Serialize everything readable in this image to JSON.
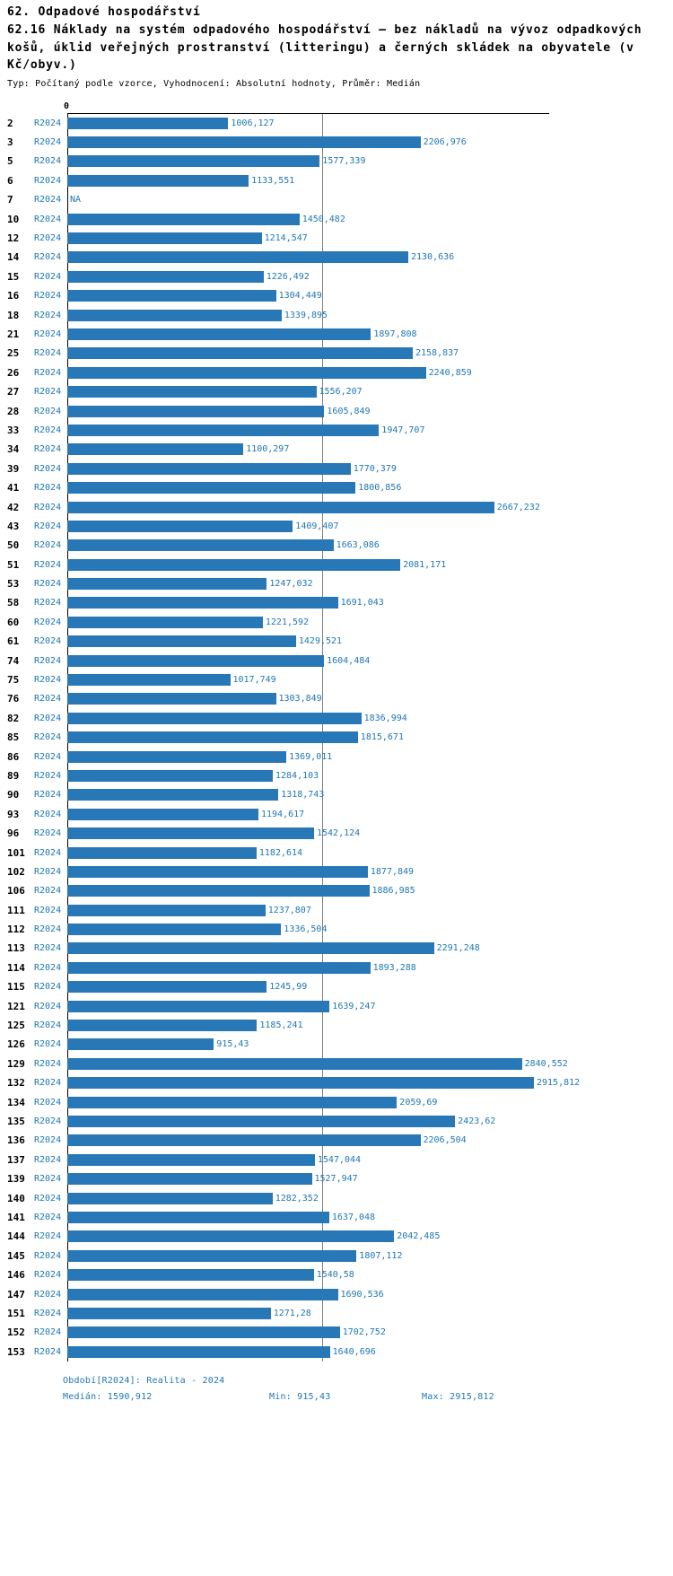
{
  "header": {
    "title": "62. Odpadové hospodářství",
    "subtitle": "62.16 Náklady na systém odpadového hospodářství – bez nákladů na vývoz odpadkových košů, úklid veřejných prostranství (litteringu) a černých skládek na obyvatele (v Kč/obyv.)",
    "meta": "Typ: Počítaný podle vzorce, Vyhodnocení: Absolutní hodnoty, Průměr: Medián"
  },
  "colors": {
    "bar": "#2878b8",
    "accent": "#1f77b4",
    "axis": "#000000",
    "median_line": "#7f7f7f"
  },
  "chart_data": {
    "type": "bar",
    "orientation": "horizontal",
    "series_label": "R2024",
    "title": "62.16 Náklady na systém odpadového hospodářství (v Kč/obyv.)",
    "axis": {
      "origin_label": "0",
      "xmin": 0,
      "xmax": 3000,
      "median_value": 1590.912
    },
    "rows": [
      {
        "id": "2",
        "value": 1006.127,
        "label": "1006,127"
      },
      {
        "id": "3",
        "value": 2206.976,
        "label": "2206,976"
      },
      {
        "id": "5",
        "value": 1577.339,
        "label": "1577,339"
      },
      {
        "id": "6",
        "value": 1133.551,
        "label": "1133,551"
      },
      {
        "id": "7",
        "value": null,
        "label": "NA"
      },
      {
        "id": "10",
        "value": 1450.482,
        "label": "1450,482"
      },
      {
        "id": "12",
        "value": 1214.547,
        "label": "1214,547"
      },
      {
        "id": "14",
        "value": 2130.636,
        "label": "2130,636"
      },
      {
        "id": "15",
        "value": 1226.492,
        "label": "1226,492"
      },
      {
        "id": "16",
        "value": 1304.449,
        "label": "1304,449"
      },
      {
        "id": "18",
        "value": 1339.895,
        "label": "1339,895"
      },
      {
        "id": "21",
        "value": 1897.808,
        "label": "1897,808"
      },
      {
        "id": "25",
        "value": 2158.837,
        "label": "2158,837"
      },
      {
        "id": "26",
        "value": 2240.859,
        "label": "2240,859"
      },
      {
        "id": "27",
        "value": 1556.207,
        "label": "1556,207"
      },
      {
        "id": "28",
        "value": 1605.849,
        "label": "1605,849"
      },
      {
        "id": "33",
        "value": 1947.707,
        "label": "1947,707"
      },
      {
        "id": "34",
        "value": 1100.297,
        "label": "1100,297"
      },
      {
        "id": "39",
        "value": 1770.379,
        "label": "1770,379"
      },
      {
        "id": "41",
        "value": 1800.856,
        "label": "1800,856"
      },
      {
        "id": "42",
        "value": 2667.232,
        "label": "2667,232"
      },
      {
        "id": "43",
        "value": 1409.407,
        "label": "1409,407"
      },
      {
        "id": "50",
        "value": 1663.086,
        "label": "1663,086"
      },
      {
        "id": "51",
        "value": 2081.171,
        "label": "2081,171"
      },
      {
        "id": "53",
        "value": 1247.032,
        "label": "1247,032"
      },
      {
        "id": "58",
        "value": 1691.043,
        "label": "1691,043"
      },
      {
        "id": "60",
        "value": 1221.592,
        "label": "1221,592"
      },
      {
        "id": "61",
        "value": 1429.521,
        "label": "1429,521"
      },
      {
        "id": "74",
        "value": 1604.484,
        "label": "1604,484"
      },
      {
        "id": "75",
        "value": 1017.749,
        "label": "1017,749"
      },
      {
        "id": "76",
        "value": 1303.849,
        "label": "1303,849"
      },
      {
        "id": "82",
        "value": 1836.994,
        "label": "1836,994"
      },
      {
        "id": "85",
        "value": 1815.671,
        "label": "1815,671"
      },
      {
        "id": "86",
        "value": 1369.011,
        "label": "1369,011"
      },
      {
        "id": "89",
        "value": 1284.103,
        "label": "1284,103"
      },
      {
        "id": "90",
        "value": 1318.743,
        "label": "1318,743"
      },
      {
        "id": "93",
        "value": 1194.617,
        "label": "1194,617"
      },
      {
        "id": "96",
        "value": 1542.124,
        "label": "1542,124"
      },
      {
        "id": "101",
        "value": 1182.614,
        "label": "1182,614"
      },
      {
        "id": "102",
        "value": 1877.849,
        "label": "1877,849"
      },
      {
        "id": "106",
        "value": 1886.985,
        "label": "1886,985"
      },
      {
        "id": "111",
        "value": 1237.807,
        "label": "1237,807"
      },
      {
        "id": "112",
        "value": 1336.504,
        "label": "1336,504"
      },
      {
        "id": "113",
        "value": 2291.248,
        "label": "2291,248"
      },
      {
        "id": "114",
        "value": 1893.288,
        "label": "1893,288"
      },
      {
        "id": "115",
        "value": 1245.99,
        "label": "1245,99"
      },
      {
        "id": "121",
        "value": 1639.247,
        "label": "1639,247"
      },
      {
        "id": "125",
        "value": 1185.241,
        "label": "1185,241"
      },
      {
        "id": "126",
        "value": 915.43,
        "label": "915,43"
      },
      {
        "id": "129",
        "value": 2840.552,
        "label": "2840,552"
      },
      {
        "id": "132",
        "value": 2915.812,
        "label": "2915,812"
      },
      {
        "id": "134",
        "value": 2059.69,
        "label": "2059,69"
      },
      {
        "id": "135",
        "value": 2423.62,
        "label": "2423,62"
      },
      {
        "id": "136",
        "value": 2206.504,
        "label": "2206,504"
      },
      {
        "id": "137",
        "value": 1547.044,
        "label": "1547,044"
      },
      {
        "id": "139",
        "value": 1527.947,
        "label": "1527,947"
      },
      {
        "id": "140",
        "value": 1282.352,
        "label": "1282,352"
      },
      {
        "id": "141",
        "value": 1637.048,
        "label": "1637,048"
      },
      {
        "id": "144",
        "value": 2042.485,
        "label": "2042,485"
      },
      {
        "id": "145",
        "value": 1807.112,
        "label": "1807,112"
      },
      {
        "id": "146",
        "value": 1540.58,
        "label": "1540,58"
      },
      {
        "id": "147",
        "value": 1690.536,
        "label": "1690,536"
      },
      {
        "id": "151",
        "value": 1271.28,
        "label": "1271,28"
      },
      {
        "id": "152",
        "value": 1702.752,
        "label": "1702,752"
      },
      {
        "id": "153",
        "value": 1640.696,
        "label": "1640,696"
      }
    ]
  },
  "footer": {
    "period": "Období[R2024]: Realita - 2024",
    "median": "Medián: 1590,912",
    "min": "Min: 915,43",
    "max": "Max: 2915,812"
  }
}
